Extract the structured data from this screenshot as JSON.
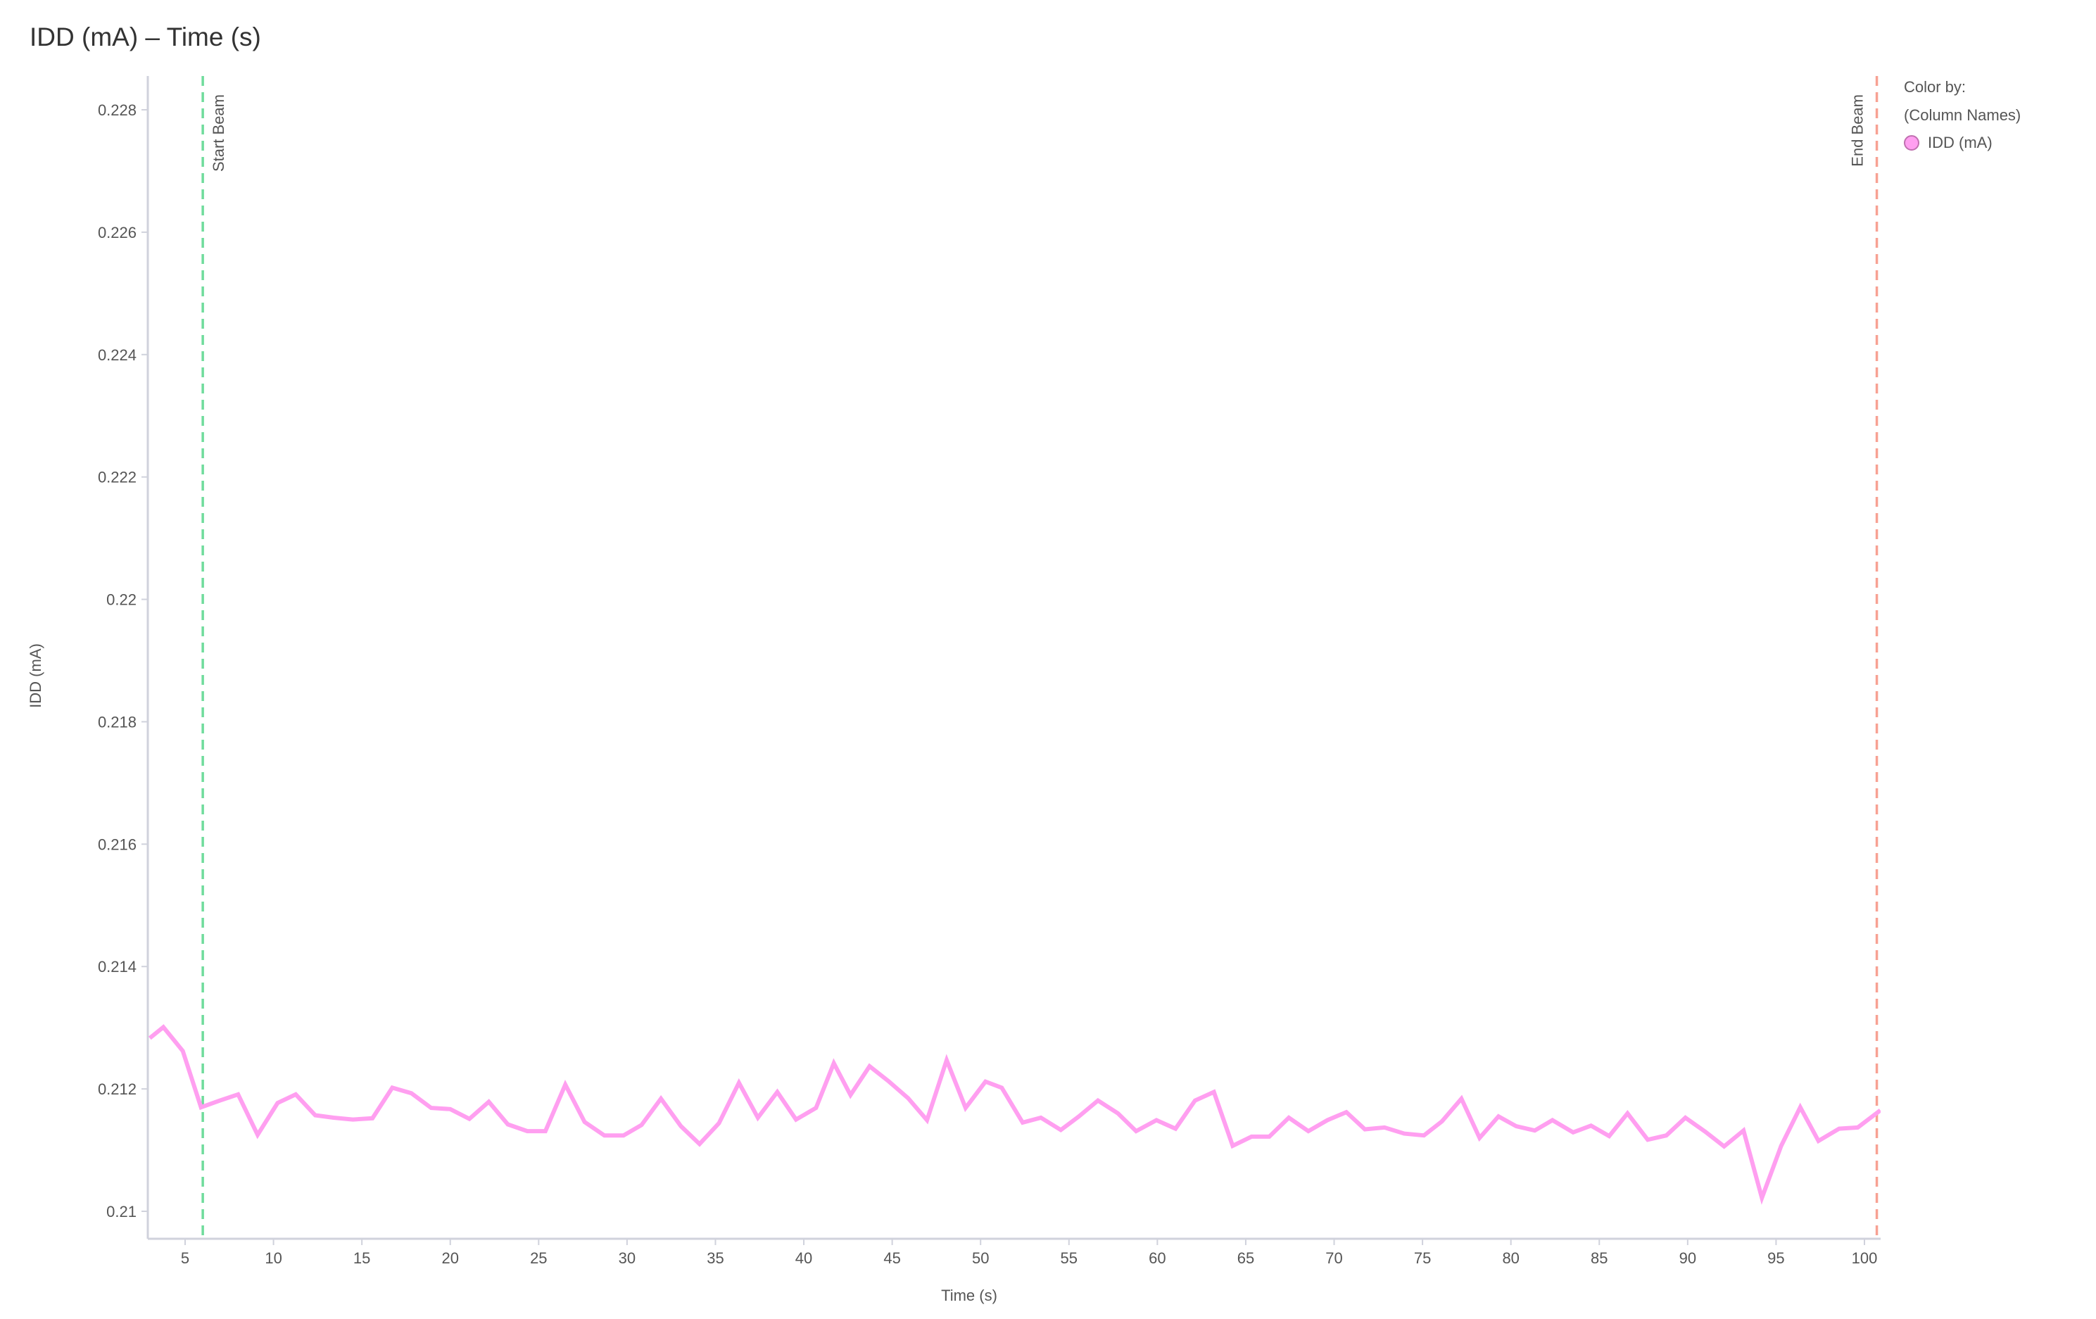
{
  "chart_data": {
    "type": "line",
    "title": "IDD (mA) – Time (s)",
    "xlabel": "Time (s)",
    "ylabel": "IDD (mA)",
    "xlim": [
      2.9,
      100.9
    ],
    "ylim": [
      0.2096,
      0.2285
    ],
    "xticks": [
      5,
      10,
      15,
      20,
      25,
      30,
      35,
      40,
      45,
      50,
      55,
      60,
      65,
      70,
      75,
      80,
      85,
      90,
      95,
      100
    ],
    "xtick_labels": [
      "5",
      "10",
      "15",
      "20",
      "25",
      "30",
      "35",
      "40",
      "45",
      "50",
      "55",
      "60",
      "65",
      "70",
      "75",
      "80",
      "85",
      "90",
      "95",
      "100"
    ],
    "yticks": [
      0.21,
      0.212,
      0.214,
      0.216,
      0.218,
      0.22,
      0.222,
      0.224,
      0.226,
      0.228
    ],
    "ytick_labels": [
      "0.21",
      "0.212",
      "0.214",
      "0.216",
      "0.218",
      "0.22",
      "0.222",
      "0.224",
      "0.226",
      "0.228"
    ],
    "grid": false,
    "legend": {
      "title_line1": "Color by:",
      "title_line2": "(Column Names)",
      "placement": "top-right",
      "entries": [
        {
          "name": "IDD (mA)",
          "color": "#ff9ff0"
        }
      ]
    },
    "reference_lines": [
      {
        "label": "Start Beam",
        "x": 6.0,
        "color": "#6fdc9c"
      },
      {
        "label": "End Beam",
        "x": 100.7,
        "color": "#f7a193"
      }
    ],
    "series": [
      {
        "name": "IDD (mA)",
        "color": "#ff9ff0",
        "x": [
          3.0,
          3.77,
          4.87,
          5.9,
          6.97,
          8.0,
          9.1,
          10.23,
          11.26,
          12.36,
          13.4,
          14.49,
          15.6,
          16.72,
          17.8,
          18.92,
          20.0,
          21.08,
          22.18,
          23.26,
          24.36,
          25.38,
          26.51,
          27.6,
          28.72,
          29.8,
          30.82,
          31.92,
          33.05,
          34.1,
          35.2,
          36.33,
          37.4,
          38.5,
          39.56,
          40.69,
          41.7,
          42.64,
          43.72,
          44.82,
          45.9,
          46.97,
          48.08,
          49.15,
          50.28,
          51.2,
          52.38,
          53.41,
          54.54,
          55.56,
          56.64,
          57.77,
          58.8,
          59.95,
          61.03,
          62.13,
          63.2,
          64.26,
          65.33,
          66.33,
          67.44,
          68.54,
          69.62,
          70.69,
          71.74,
          72.85,
          73.97,
          75.08,
          76.1,
          77.2,
          78.23,
          79.3,
          80.3,
          81.35,
          82.35,
          83.52,
          84.53,
          85.56,
          86.6,
          87.74,
          88.79,
          89.87,
          91.0,
          92.06,
          93.16,
          94.2,
          95.29,
          96.37,
          97.4,
          98.57,
          99.62,
          100.9
        ],
        "y": [
          0.21283,
          0.21301,
          0.21262,
          0.2117,
          0.21181,
          0.21191,
          0.21125,
          0.21177,
          0.21191,
          0.21157,
          0.21153,
          0.2115,
          0.21152,
          0.21202,
          0.21193,
          0.21169,
          0.21167,
          0.21151,
          0.21179,
          0.21142,
          0.21131,
          0.21131,
          0.21207,
          0.21146,
          0.21124,
          0.21124,
          0.21141,
          0.21184,
          0.21139,
          0.2111,
          0.21144,
          0.2121,
          0.21153,
          0.21195,
          0.2115,
          0.21169,
          0.21242,
          0.2119,
          0.21237,
          0.21212,
          0.21185,
          0.21149,
          0.21247,
          0.21169,
          0.21212,
          0.21202,
          0.21145,
          0.21153,
          0.21133,
          0.21155,
          0.21181,
          0.2116,
          0.21131,
          0.21149,
          0.21135,
          0.21181,
          0.21195,
          0.21107,
          0.21122,
          0.21122,
          0.21153,
          0.21131,
          0.21149,
          0.21162,
          0.21134,
          0.21137,
          0.21127,
          0.21124,
          0.21147,
          0.21184,
          0.2112,
          0.21155,
          0.21139,
          0.21132,
          0.21149,
          0.21129,
          0.2114,
          0.21123,
          0.2116,
          0.21117,
          0.21124,
          0.21153,
          0.2113,
          0.21106,
          0.21132,
          0.21022,
          0.21107,
          0.2117,
          0.21115,
          0.21135,
          0.21137,
          0.21165
        ]
      }
    ]
  }
}
